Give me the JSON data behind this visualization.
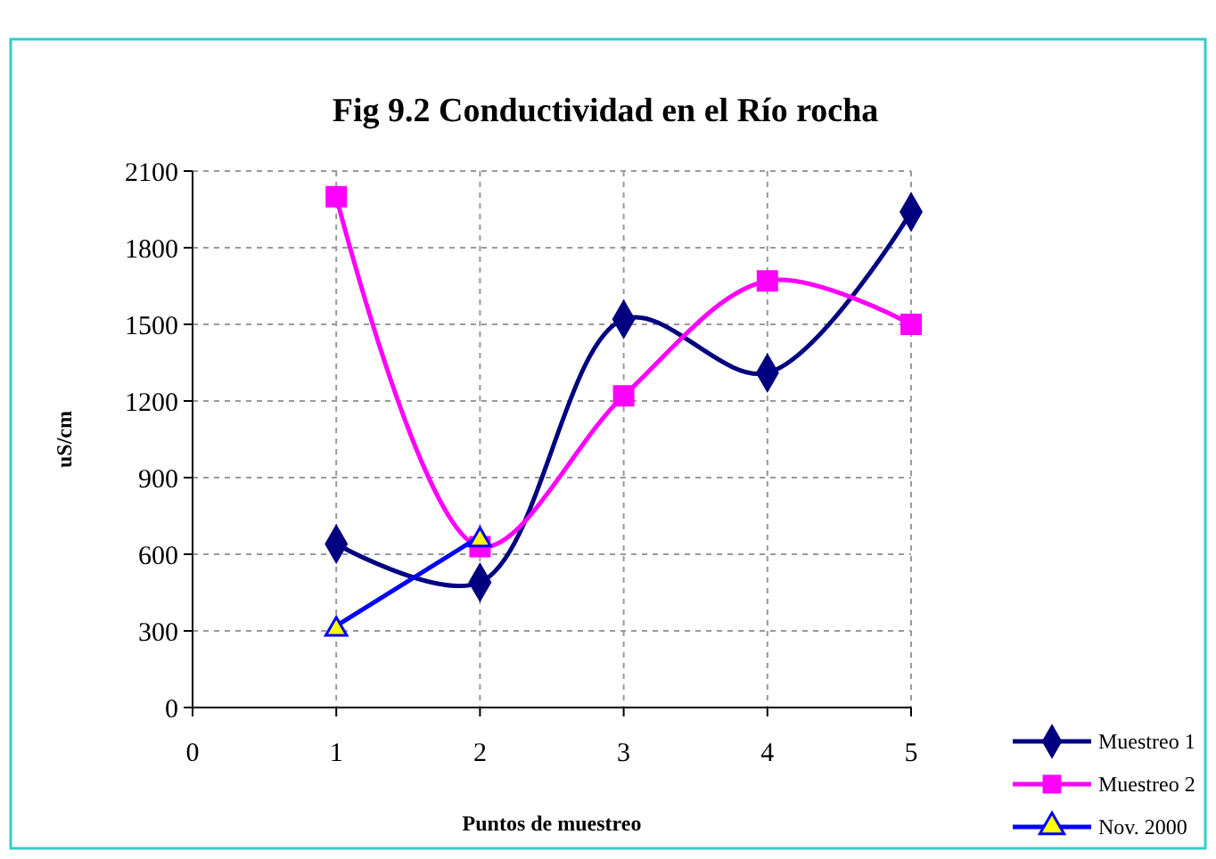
{
  "chart_data": {
    "type": "line",
    "title": "Fig 9.2 Conductividad en el Río rocha",
    "xlabel": "Puntos de muestreo",
    "ylabel": "uS/cm",
    "x": [
      1,
      2,
      3,
      4,
      5
    ],
    "series": [
      {
        "name": "Muestreo 1",
        "color": "#000080",
        "values": [
          640,
          490,
          1520,
          1310,
          1940
        ],
        "marker": "diamond"
      },
      {
        "name": "Muestreo 2",
        "color": "#ff00ff",
        "values": [
          2000,
          630,
          1220,
          1670,
          1500
        ],
        "marker": "square"
      },
      {
        "name": "Nov. 2000",
        "color": "#0000ff",
        "values": [
          320,
          670,
          null,
          null,
          null
        ],
        "marker": "triangle"
      }
    ],
    "xlim": [
      0,
      5
    ],
    "xticks": [
      0,
      1,
      2,
      3,
      4,
      5
    ],
    "ylim": [
      0,
      2100
    ],
    "yticks": [
      0,
      300,
      600,
      900,
      1200,
      1500,
      1800,
      2100
    ],
    "grid": true,
    "legend": "bottom right",
    "line_style": "solid"
  }
}
